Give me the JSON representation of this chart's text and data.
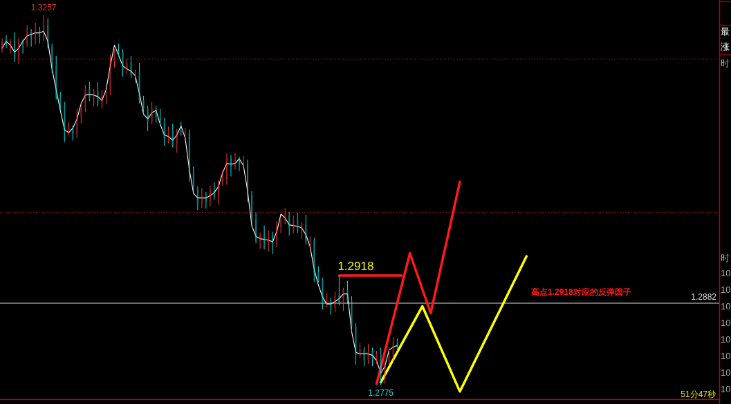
{
  "chart_data": {
    "type": "candlestick",
    "categories": [
      null,
      null,
      null,
      null,
      null,
      null,
      null,
      null,
      null,
      null,
      null,
      null,
      null,
      null,
      null,
      null,
      null,
      null,
      null,
      null,
      null,
      null,
      null,
      null,
      null,
      null,
      null,
      null,
      null,
      null,
      null,
      null,
      null,
      null,
      null,
      null,
      null,
      null,
      null,
      null,
      null,
      null,
      null,
      null,
      null,
      null,
      null,
      null,
      null,
      null,
      null,
      null,
      null,
      null,
      null,
      null,
      null,
      null,
      null,
      null,
      null,
      null,
      null,
      null,
      null,
      null,
      null,
      null,
      null,
      null,
      null,
      null,
      null,
      null,
      null,
      null,
      null,
      null,
      null,
      null,
      null,
      null,
      null,
      null,
      null,
      null,
      null,
      null,
      null,
      null,
      null,
      null,
      null,
      null,
      null,
      null,
      null,
      null,
      null,
      null,
      null,
      null,
      null,
      null,
      null,
      null,
      null,
      null,
      null,
      null,
      null,
      null,
      null,
      null,
      null,
      null,
      null,
      null,
      null,
      null,
      null,
      null,
      null,
      null,
      null,
      null,
      null,
      null,
      null,
      null,
      null,
      null,
      null,
      null,
      null,
      null,
      null,
      null,
      null,
      null,
      null,
      null,
      null,
      null,
      null,
      null,
      null,
      null,
      null,
      null,
      null,
      null,
      null,
      null,
      null,
      null,
      null,
      null,
      null,
      null,
      null,
      null,
      null,
      null,
      null,
      null,
      null,
      null,
      null,
      null,
      null,
      null
    ],
    "ohlc": [
      [
        1.3214,
        1.3227,
        1.3208,
        1.3222
      ],
      [
        1.3222,
        1.3231,
        1.3214,
        1.3217
      ],
      [
        1.3217,
        1.3226,
        1.3207,
        1.3223
      ],
      [
        1.3223,
        1.3235,
        1.3196,
        1.32
      ],
      [
        1.32,
        1.3227,
        1.3193,
        1.3221
      ],
      [
        1.3221,
        1.3225,
        1.3207,
        1.3219
      ],
      [
        1.3219,
        1.3244,
        1.3216,
        1.3236
      ],
      [
        1.3236,
        1.3239,
        1.3216,
        1.3224
      ],
      [
        1.3224,
        1.3247,
        1.3219,
        1.3237
      ],
      [
        1.3237,
        1.3242,
        1.322,
        1.3229
      ],
      [
        1.3229,
        1.3257,
        1.3223,
        1.3244
      ],
      [
        1.3244,
        1.3253,
        1.3214,
        1.3217
      ],
      [
        1.3217,
        1.322,
        1.3182,
        1.3192
      ],
      [
        1.3192,
        1.3204,
        1.3147,
        1.3151
      ],
      [
        1.3151,
        1.3157,
        1.3133,
        1.314
      ],
      [
        1.314,
        1.3144,
        1.3092,
        1.3104
      ],
      [
        1.3104,
        1.3118,
        1.3101,
        1.311
      ],
      [
        1.311,
        1.3113,
        1.3094,
        1.3102
      ],
      [
        1.3102,
        1.3135,
        1.3097,
        1.3125
      ],
      [
        1.3125,
        1.3142,
        1.3116,
        1.3137
      ],
      [
        1.3137,
        1.3166,
        1.3131,
        1.3161
      ],
      [
        1.3161,
        1.317,
        1.3145,
        1.3148
      ],
      [
        1.3148,
        1.3161,
        1.3138,
        1.3158
      ],
      [
        1.3158,
        1.317,
        1.3138,
        1.3142
      ],
      [
        1.3142,
        1.3159,
        1.3135,
        1.3153
      ],
      [
        1.3153,
        1.316,
        1.3141,
        1.3156
      ],
      [
        1.3156,
        1.3205,
        1.3153,
        1.3197
      ],
      [
        1.3197,
        1.3213,
        1.3189,
        1.321
      ],
      [
        1.321,
        1.322,
        1.3203,
        1.3208
      ],
      [
        1.3208,
        1.3213,
        1.3177,
        1.3186
      ],
      [
        1.3186,
        1.32,
        1.318,
        1.3195
      ],
      [
        1.3195,
        1.3204,
        1.3175,
        1.3178
      ],
      [
        1.3178,
        1.3186,
        1.3168,
        1.3183
      ],
      [
        1.3183,
        1.3195,
        1.3142,
        1.3146
      ],
      [
        1.3146,
        1.3152,
        1.3128,
        1.3135
      ],
      [
        1.3135,
        1.3139,
        1.3106,
        1.3118
      ],
      [
        1.3118,
        1.3144,
        1.3115,
        1.3136
      ],
      [
        1.3136,
        1.3139,
        1.3117,
        1.3125
      ],
      [
        1.3125,
        1.3135,
        1.3113,
        1.3118
      ],
      [
        1.3118,
        1.3123,
        1.3087,
        1.3096
      ],
      [
        1.3096,
        1.3112,
        1.309,
        1.3107
      ],
      [
        1.3107,
        1.3116,
        1.3085,
        1.3088
      ],
      [
        1.3088,
        1.3109,
        1.3078,
        1.3106
      ],
      [
        1.3106,
        1.3118,
        1.31,
        1.3104
      ],
      [
        1.3104,
        1.311,
        1.3097,
        1.3104
      ],
      [
        1.3104,
        1.3108,
        1.304,
        1.3052
      ],
      [
        1.3052,
        1.306,
        1.3028,
        1.3031
      ],
      [
        1.3031,
        1.3034,
        1.3003,
        1.3011
      ],
      [
        1.3011,
        1.3032,
        1.3006,
        1.3022
      ],
      [
        1.3022,
        1.3027,
        1.3005,
        1.3014
      ],
      [
        1.3014,
        1.3035,
        1.3008,
        1.303
      ],
      [
        1.303,
        1.3039,
        1.3017,
        1.302
      ],
      [
        1.302,
        1.3042,
        1.301,
        1.3039
      ],
      [
        1.3039,
        1.3055,
        1.3035,
        1.3043
      ],
      [
        1.3043,
        1.3077,
        1.3036,
        1.3071
      ],
      [
        1.3071,
        1.3075,
        1.3047,
        1.3059
      ],
      [
        1.3059,
        1.3078,
        1.3056,
        1.307
      ],
      [
        1.307,
        1.3073,
        1.3054,
        1.3062
      ],
      [
        1.3062,
        1.3074,
        1.3057,
        1.3064
      ],
      [
        1.3064,
        1.3069,
        1.3014,
        1.3023
      ],
      [
        1.3023,
        1.3028,
        1.2985,
        1.2991
      ],
      [
        1.2991,
        1.3,
        1.296,
        1.2963
      ],
      [
        1.2963,
        1.2974,
        1.2953,
        1.2971
      ],
      [
        1.2971,
        1.2983,
        1.2952,
        1.2956
      ],
      [
        1.2956,
        1.2977,
        1.2949,
        1.2971
      ],
      [
        1.2971,
        1.2975,
        1.2946,
        1.2958
      ],
      [
        1.2958,
        1.2989,
        1.2955,
        1.2981
      ],
      [
        1.2981,
        1.2993,
        1.2973,
        1.299
      ],
      [
        1.299,
        1.3006,
        1.2985,
        1.2996
      ],
      [
        1.2996,
        1.3001,
        1.297,
        1.2979
      ],
      [
        1.2979,
        1.2996,
        1.2973,
        1.2991
      ],
      [
        1.2991,
        1.3,
        1.2973,
        1.2976
      ],
      [
        1.2976,
        1.2988,
        1.2966,
        1.2985
      ],
      [
        1.2985,
        1.2997,
        1.2958,
        1.2962
      ],
      [
        1.2962,
        1.2969,
        1.2955,
        1.2963
      ],
      [
        1.2963,
        1.2967,
        1.291,
        1.2922
      ],
      [
        1.2922,
        1.293,
        1.2909,
        1.2912
      ],
      [
        1.2912,
        1.2915,
        1.2874,
        1.2882
      ],
      [
        1.2882,
        1.2894,
        1.2877,
        1.2884
      ],
      [
        1.2884,
        1.2889,
        1.2867,
        1.2876
      ],
      [
        1.2876,
        1.2897,
        1.287,
        1.2892
      ],
      [
        1.2892,
        1.2918,
        1.2879,
        1.2882
      ],
      [
        1.2882,
        1.2902,
        1.2872,
        1.2899
      ],
      [
        1.2899,
        1.2911,
        1.2881,
        1.2885
      ],
      [
        1.2885,
        1.2891,
        1.2845,
        1.2852
      ],
      [
        1.2852,
        1.2856,
        1.2802,
        1.2814
      ],
      [
        1.2814,
        1.283,
        1.2811,
        1.2822
      ],
      [
        1.2822,
        1.2825,
        1.28,
        1.2808
      ],
      [
        1.2808,
        1.2829,
        1.2803,
        1.2819
      ],
      [
        1.2819,
        1.2824,
        1.28,
        1.2809
      ],
      [
        1.2809,
        1.282,
        1.2803,
        1.2815
      ],
      [
        1.2815,
        1.2824,
        1.2775,
        1.2785
      ],
      [
        1.2785,
        1.2808,
        1.2777,
        1.2805
      ],
      [
        1.2805,
        1.2824,
        1.2801,
        1.2812
      ],
      [
        1.2812,
        1.2838,
        1.2805,
        1.2832
      ],
      [
        1.2832,
        1.2836,
        1.282,
        1.2823
      ],
      null,
      null,
      null,
      null,
      null,
      null,
      null,
      null,
      null,
      null,
      null,
      null,
      null,
      null,
      null,
      null,
      null,
      null,
      null,
      null,
      null,
      null,
      null,
      null,
      null,
      null,
      null,
      null,
      null,
      null,
      null,
      null,
      null,
      null,
      null,
      null,
      null,
      null,
      null,
      null,
      null,
      null,
      null,
      null,
      null,
      null,
      null,
      null,
      null,
      null,
      null,
      null,
      null,
      null,
      null,
      null,
      null,
      null,
      null,
      null,
      null,
      null,
      null,
      null,
      null,
      null,
      null,
      null,
      null,
      null,
      null,
      null,
      null,
      null,
      null,
      null
    ],
    "series": [
      {
        "type": "line",
        "color": "#ffffff",
        "values": [
          1.3214,
          1.3223,
          1.3218,
          1.3209,
          1.3214,
          1.3223,
          1.323,
          1.3232,
          1.3234,
          1.3234,
          1.3236,
          1.3223,
          1.3187,
          1.316,
          1.3133,
          1.3108,
          1.3104,
          1.311,
          1.3122,
          1.3142,
          1.3153,
          1.3154,
          1.3153,
          1.3151,
          1.3146,
          1.316,
          1.3191,
          1.3218,
          1.3205,
          1.3191,
          1.3187,
          1.3184,
          1.3178,
          1.3155,
          1.3128,
          1.3122,
          1.313,
          1.3133,
          1.3115,
          1.3101,
          1.3099,
          1.3094,
          1.3101,
          1.3113,
          1.3097,
          1.3056,
          1.3025,
          1.3019,
          1.3019,
          1.3019,
          1.3022,
          1.3026,
          1.3034,
          1.3052,
          1.3064,
          1.3063,
          1.3064,
          1.307,
          1.3061,
          1.3028,
          1.2983,
          1.2969,
          1.2966,
          1.2965,
          1.2964,
          1.2962,
          1.2975,
          1.2998,
          1.2993,
          1.2984,
          1.2983,
          1.2982,
          1.298,
          1.2971,
          1.2956,
          1.2926,
          1.2906,
          1.289,
          1.2881,
          1.2881,
          1.2884,
          1.2888,
          1.2894,
          1.2894,
          1.2845,
          1.2818,
          1.2816,
          1.2816,
          1.2816,
          1.2814,
          1.2807,
          1.2791,
          1.28,
          1.2821,
          1.2825,
          1.2827,
          null,
          null,
          null,
          null,
          null,
          null,
          null,
          null,
          null,
          null,
          null,
          null,
          null,
          null,
          null,
          null,
          null,
          null,
          null,
          null,
          null,
          null,
          null,
          null,
          null,
          null,
          null,
          null,
          null,
          null,
          null,
          null,
          null,
          null,
          null,
          null,
          null,
          null,
          null,
          null,
          null,
          null,
          null,
          null,
          null,
          null,
          null,
          null,
          null,
          null,
          null,
          null,
          null,
          null,
          null,
          null,
          null,
          null,
          null,
          null,
          null,
          null,
          null,
          null,
          null,
          null,
          null,
          null,
          null,
          null,
          null,
          null,
          null,
          null,
          null,
          null
        ]
      },
      {
        "type": "line",
        "color": "#ff1a1a",
        "values": [
          null,
          null,
          null,
          null,
          null,
          null,
          null,
          null,
          null,
          null,
          null,
          null,
          null,
          null,
          null,
          null,
          null,
          null,
          null,
          null,
          null,
          null,
          null,
          null,
          null,
          null,
          null,
          null,
          null,
          null,
          null,
          null,
          null,
          null,
          null,
          null,
          null,
          null,
          null,
          null,
          null,
          null,
          null,
          null,
          null,
          null,
          null,
          null,
          null,
          null,
          null,
          null,
          null,
          null,
          null,
          null,
          null,
          null,
          null,
          null,
          null,
          null,
          null,
          null,
          null,
          null,
          null,
          null,
          null,
          null,
          null,
          null,
          null,
          null,
          null,
          null,
          null,
          null,
          null,
          null,
          null,
          null,
          null,
          null,
          null,
          null,
          null,
          null,
          null,
          null,
          1.2777,
          null,
          null,
          null,
          null,
          null,
          null,
          null,
          1.2947,
          null,
          null,
          null,
          null,
          1.2869,
          null,
          null,
          null,
          null,
          null,
          null,
          1.304,
          null,
          null,
          null,
          null,
          null,
          null,
          null,
          null,
          null,
          null,
          null,
          null,
          null,
          null,
          null,
          null,
          null,
          null,
          null,
          null,
          null,
          null,
          null,
          null,
          null,
          null,
          null,
          null,
          null,
          null,
          null,
          null,
          null,
          null,
          null,
          null,
          null,
          null,
          null,
          null,
          null,
          null,
          null,
          null,
          null,
          null,
          null,
          null,
          null,
          null,
          null,
          null,
          null,
          null,
          null,
          null,
          null,
          null,
          null,
          null,
          null
        ]
      },
      {
        "type": "line",
        "color": "#ffff00",
        "values": [
          null,
          null,
          null,
          null,
          null,
          null,
          null,
          null,
          null,
          null,
          null,
          null,
          null,
          null,
          null,
          null,
          null,
          null,
          null,
          null,
          null,
          null,
          null,
          null,
          null,
          null,
          null,
          null,
          null,
          null,
          null,
          null,
          null,
          null,
          null,
          null,
          null,
          null,
          null,
          null,
          null,
          null,
          null,
          null,
          null,
          null,
          null,
          null,
          null,
          null,
          null,
          null,
          null,
          null,
          null,
          null,
          null,
          null,
          null,
          null,
          null,
          null,
          null,
          null,
          null,
          null,
          null,
          null,
          null,
          null,
          null,
          null,
          null,
          null,
          null,
          null,
          null,
          null,
          null,
          null,
          null,
          null,
          null,
          null,
          null,
          null,
          null,
          null,
          null,
          null,
          null,
          1.2779,
          null,
          null,
          null,
          null,
          null,
          null,
          null,
          null,
          null,
          1.2878,
          null,
          null,
          null,
          null,
          null,
          null,
          null,
          null,
          1.2767,
          null,
          null,
          null,
          null,
          null,
          null,
          null,
          null,
          null,
          null,
          null,
          null,
          null,
          null,
          null,
          1.2943,
          null,
          null,
          null,
          null,
          null,
          null,
          null,
          null,
          null,
          null,
          null,
          null,
          null,
          null,
          null,
          null,
          null,
          null,
          null,
          null,
          null,
          null,
          null,
          null,
          null,
          null,
          null,
          null,
          null,
          null,
          null,
          null,
          null,
          null,
          null,
          null,
          null,
          null,
          null,
          null,
          null,
          null,
          null,
          null,
          null
        ]
      },
      {
        "type": "line",
        "color": "#ff1a1a",
        "values": [
          null,
          null,
          null,
          null,
          null,
          null,
          null,
          null,
          null,
          null,
          null,
          null,
          null,
          null,
          null,
          null,
          null,
          null,
          null,
          null,
          null,
          null,
          null,
          null,
          null,
          null,
          null,
          null,
          null,
          null,
          null,
          null,
          null,
          null,
          null,
          null,
          null,
          null,
          null,
          null,
          null,
          null,
          null,
          null,
          null,
          null,
          null,
          null,
          null,
          null,
          null,
          null,
          null,
          null,
          null,
          null,
          null,
          null,
          null,
          null,
          null,
          null,
          null,
          null,
          null,
          null,
          null,
          null,
          null,
          null,
          null,
          null,
          null,
          null,
          null,
          null,
          null,
          null,
          null,
          null,
          null,
          1.2918,
          null,
          null,
          null,
          null,
          null,
          null,
          null,
          null,
          null,
          null,
          null,
          null,
          null,
          null,
          1.2918,
          null,
          null,
          null,
          null,
          null,
          null,
          null,
          null,
          null,
          null,
          null,
          null,
          null,
          null,
          null,
          null,
          null,
          null,
          null,
          null,
          null,
          null,
          null,
          null,
          null,
          null,
          null,
          null,
          null,
          null,
          null,
          null,
          null,
          null,
          null,
          null,
          null,
          null,
          null,
          null,
          null,
          null,
          null,
          null,
          null,
          null,
          null,
          null,
          null,
          null,
          null,
          null,
          null,
          null,
          null,
          null,
          null,
          null,
          null,
          null,
          null,
          null,
          null,
          null,
          null,
          null,
          null,
          null,
          null,
          null,
          null,
          null,
          null,
          null,
          null
        ]
      }
    ],
    "yticks": [
      {
        "value": 1.3,
        "label": null
      },
      {
        "value": 1.32,
        "label": null
      }
    ],
    "grid": "y",
    "ref_lines": [
      {
        "axis": "y",
        "value": 1.2882,
        "label": "1.2882",
        "color": "#d9d9d9"
      }
    ],
    "annotations": [
      {
        "text": "1.3257",
        "y": 1.3257
      },
      {
        "text": "1.2918",
        "y": 1.2918
      },
      {
        "text": "1.2775",
        "y": 1.2775
      },
      "高点1.2918对应的反弹因子",
      "51分47秒",
      "最",
      "涨",
      "时",
      "时",
      "10",
      "10",
      "10",
      "10",
      "10",
      "10",
      "10",
      "10"
    ]
  }
}
